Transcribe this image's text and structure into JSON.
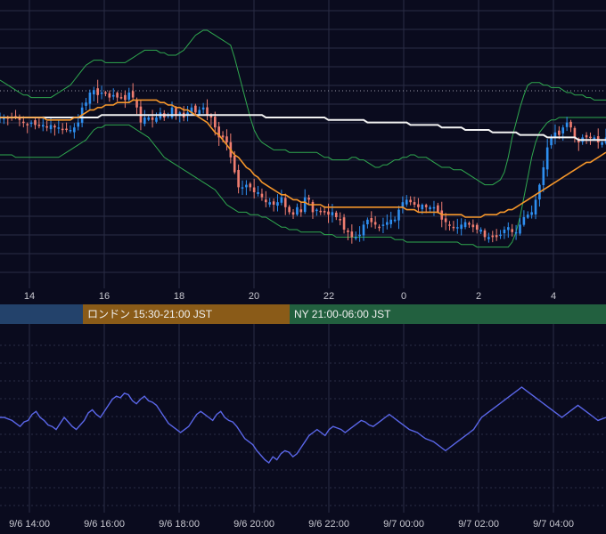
{
  "chart_data": [
    {
      "type": "candlestick",
      "x_ticks": [
        "14",
        "16",
        "18",
        "20",
        "22",
        "0",
        "2",
        "4"
      ],
      "y_range": [
        0,
        100
      ],
      "grid": true,
      "colors": {
        "up": "#2e8ff0",
        "down": "#ef7d70",
        "bollinger": "#2fa84f",
        "ma_short": "#f5962a",
        "ma_long": "#f2f2f2",
        "grid": "#2a2d45"
      },
      "closes": [
        60,
        60,
        60,
        60,
        60,
        59,
        58,
        57,
        58,
        57,
        57,
        57,
        56,
        57,
        56,
        56,
        55,
        55,
        55,
        56,
        58,
        64,
        66,
        70,
        71,
        69,
        70,
        70,
        68,
        69,
        68,
        68,
        67,
        70,
        68,
        64,
        58,
        60,
        60,
        59,
        60,
        62,
        60,
        61,
        64,
        61,
        62,
        60,
        62,
        64,
        62,
        63,
        64,
        61,
        60,
        56,
        52,
        52,
        50,
        44,
        38,
        32,
        32,
        33,
        32,
        30,
        30,
        28,
        26,
        26,
        25,
        26,
        28,
        24,
        22,
        21,
        24,
        22,
        28,
        27,
        22,
        23,
        22,
        22,
        21,
        22,
        20,
        19,
        15,
        14,
        12,
        12,
        13,
        17,
        19,
        18,
        17,
        16,
        17,
        18,
        19,
        19,
        23,
        26,
        27,
        26,
        25,
        24,
        25,
        24,
        24,
        24,
        22,
        19,
        18,
        17,
        16,
        16,
        17,
        18,
        17,
        16,
        15,
        15,
        12,
        12,
        12,
        12,
        13,
        15,
        16,
        14,
        14,
        17,
        20,
        21,
        22,
        27,
        33,
        40,
        48,
        52,
        54,
        53,
        56,
        58,
        56,
        52,
        50,
        52,
        52,
        52,
        52,
        50,
        50,
        52
      ],
      "bollinger_upper": [
        75,
        74,
        73,
        72,
        71,
        70,
        69,
        69,
        68,
        68,
        68,
        68,
        68,
        68,
        69,
        70,
        71,
        72,
        73,
        75,
        77,
        79,
        81,
        82,
        83,
        83,
        83,
        82,
        82,
        82,
        82,
        82,
        82,
        83,
        84,
        85,
        86,
        87,
        87,
        87,
        87,
        86,
        86,
        85,
        85,
        85,
        86,
        87,
        89,
        91,
        93,
        94,
        95,
        95,
        94,
        93,
        92,
        91,
        90,
        89,
        84,
        78,
        72,
        66,
        60,
        55,
        52,
        50,
        49,
        48,
        47,
        47,
        47,
        47,
        46,
        46,
        46,
        46,
        46,
        46,
        46,
        46,
        45,
        44,
        44,
        43,
        43,
        43,
        43,
        43,
        44,
        44,
        43,
        43,
        42,
        41,
        40,
        40,
        41,
        41,
        42,
        43,
        43,
        44,
        44,
        45,
        45,
        44,
        44,
        44,
        43,
        42,
        41,
        40,
        40,
        40,
        39,
        39,
        39,
        38,
        37,
        36,
        35,
        34,
        33,
        33,
        33,
        34,
        35,
        38,
        44,
        52,
        58,
        64,
        69,
        73,
        74,
        74,
        74,
        73,
        73,
        72,
        72,
        72,
        71,
        70,
        70,
        69,
        69,
        69,
        68,
        68,
        67,
        67,
        67,
        67
      ],
      "bollinger_lower": [
        45,
        45,
        45,
        45,
        44,
        44,
        44,
        44,
        44,
        44,
        44,
        44,
        44,
        44,
        44,
        44,
        45,
        46,
        47,
        48,
        49,
        50,
        51,
        53,
        55,
        56,
        56,
        57,
        57,
        57,
        57,
        57,
        57,
        57,
        56,
        55,
        54,
        53,
        52,
        50,
        48,
        46,
        44,
        43,
        42,
        41,
        40,
        39,
        38,
        37,
        36,
        35,
        34,
        33,
        32,
        31,
        29,
        27,
        25,
        24,
        23,
        22,
        22,
        22,
        21,
        21,
        21,
        20,
        20,
        19,
        18,
        17,
        16,
        16,
        15,
        15,
        15,
        14,
        14,
        14,
        14,
        14,
        14,
        13,
        13,
        13,
        12,
        12,
        12,
        12,
        12,
        12,
        12,
        12,
        12,
        12,
        12,
        12,
        12,
        12,
        12,
        11,
        11,
        11,
        10,
        10,
        10,
        10,
        10,
        10,
        10,
        10,
        10,
        10,
        10,
        10,
        10,
        10,
        9,
        9,
        9,
        9,
        8,
        8,
        8,
        8,
        8,
        8,
        8,
        8,
        8,
        10,
        14,
        20,
        28,
        36,
        44,
        50,
        54,
        56,
        58,
        59,
        59,
        60,
        60,
        60,
        60,
        60,
        60,
        60,
        60,
        60,
        60,
        60,
        60,
        60
      ],
      "ma_short": [
        60,
        60,
        60,
        60,
        60,
        60,
        60,
        60,
        60,
        60,
        60,
        60,
        59,
        59,
        59,
        59,
        59,
        59,
        59,
        60,
        60,
        61,
        62,
        63,
        63,
        64,
        64,
        65,
        65,
        65,
        66,
        66,
        66,
        66,
        67,
        67,
        67,
        67,
        67,
        67,
        67,
        66,
        66,
        65,
        65,
        64,
        64,
        63,
        63,
        62,
        61,
        60,
        59,
        58,
        56,
        54,
        53,
        51,
        49,
        47,
        45,
        44,
        42,
        40,
        39,
        37,
        36,
        34,
        33,
        32,
        31,
        30,
        29,
        29,
        28,
        27,
        27,
        26,
        26,
        25,
        25,
        25,
        25,
        24,
        24,
        24,
        24,
        24,
        24,
        24,
        24,
        24,
        24,
        24,
        24,
        24,
        24,
        24,
        24,
        24,
        24,
        24,
        24,
        24,
        23,
        23,
        23,
        22,
        22,
        22,
        22,
        22,
        22,
        21,
        21,
        21,
        21,
        21,
        21,
        20,
        20,
        20,
        20,
        20,
        21,
        21,
        21,
        21,
        22,
        22,
        23,
        23,
        24,
        25,
        26,
        27,
        28,
        29,
        30,
        31,
        32,
        33,
        34,
        35,
        36,
        37,
        38,
        39,
        40,
        41,
        42,
        42,
        43,
        44,
        45,
        46
      ],
      "ma_long": [
        60,
        60,
        60,
        60,
        60,
        60,
        60,
        60,
        60,
        60,
        60,
        60,
        60,
        60,
        60,
        60,
        60,
        60,
        60,
        60,
        60,
        60,
        60,
        60,
        60,
        60,
        61,
        61,
        61,
        61,
        61,
        61,
        61,
        61,
        61,
        61,
        61,
        61,
        61,
        61,
        61,
        61,
        61,
        61,
        61,
        61,
        61,
        61,
        61,
        61,
        61,
        61,
        61,
        61,
        61,
        61,
        61,
        61,
        61,
        61,
        61,
        61,
        61,
        61,
        61,
        61,
        61,
        61,
        60,
        60,
        60,
        60,
        60,
        60,
        60,
        60,
        60,
        60,
        60,
        60,
        60,
        60,
        60,
        60,
        59,
        59,
        59,
        59,
        59,
        59,
        59,
        59,
        59,
        59,
        58,
        58,
        58,
        58,
        58,
        58,
        58,
        58,
        58,
        58,
        58,
        57,
        57,
        57,
        57,
        57,
        57,
        57,
        57,
        56,
        56,
        56,
        56,
        56,
        56,
        55,
        55,
        55,
        55,
        55,
        55,
        55,
        54,
        54,
        54,
        54,
        54,
        54,
        54,
        53,
        53,
        53,
        53,
        53,
        53,
        53,
        52,
        52,
        52,
        52,
        52,
        52,
        52,
        52,
        51,
        51,
        51,
        51,
        51,
        51,
        51,
        51
      ]
    },
    {
      "type": "line",
      "series": [
        {
          "values": [
            50,
            50,
            49,
            48,
            46,
            44,
            47,
            48,
            52,
            54,
            50,
            48,
            45,
            44,
            42,
            46,
            50,
            47,
            44,
            42,
            45,
            48,
            53,
            55,
            52,
            50,
            54,
            58,
            62,
            64,
            63,
            66,
            65,
            61,
            59,
            62,
            64,
            61,
            60,
            58,
            54,
            50,
            46,
            44,
            42,
            40,
            42,
            44,
            48,
            52,
            54,
            52,
            50,
            48,
            52,
            54,
            50,
            48,
            47,
            44,
            40,
            36,
            34,
            32,
            28,
            25,
            22,
            20,
            24,
            22,
            26,
            28,
            27,
            24,
            26,
            30,
            34,
            38,
            40,
            42,
            40,
            38,
            42,
            44,
            43,
            42,
            40,
            42,
            44,
            46,
            48,
            47,
            45,
            44,
            46,
            48,
            50,
            52,
            50,
            48,
            46,
            44,
            42,
            41,
            40,
            38,
            36,
            35,
            34,
            32,
            30,
            28,
            30,
            32,
            34,
            36,
            38,
            40,
            42,
            46,
            50,
            52,
            54,
            56,
            58,
            60,
            62,
            64,
            66,
            68,
            70,
            68,
            66,
            64,
            62,
            60,
            58,
            56,
            54,
            52,
            50,
            52,
            54,
            56,
            58,
            56,
            54,
            52,
            50,
            48,
            49,
            50
          ]
        }
      ],
      "y_range": [
        0,
        100
      ],
      "reference_lines": [
        30,
        50,
        70
      ],
      "x_ticks": [
        "9/6 14:00",
        "9/6 16:00",
        "9/6 18:00",
        "9/6 20:00",
        "9/6 22:00",
        "9/7 00:00",
        "9/7 02:00",
        "9/7 04:00"
      ],
      "colors": {
        "line": "#5a66e8",
        "grid": "#2a2d45"
      }
    }
  ],
  "sessions": [
    {
      "label": "",
      "color": "#23426b"
    },
    {
      "label": "ロンドン 15:30-21:00 JST",
      "color": "#8a5b18"
    },
    {
      "label": "NY 21:00-06:00 JST",
      "color": "#22603f"
    }
  ]
}
